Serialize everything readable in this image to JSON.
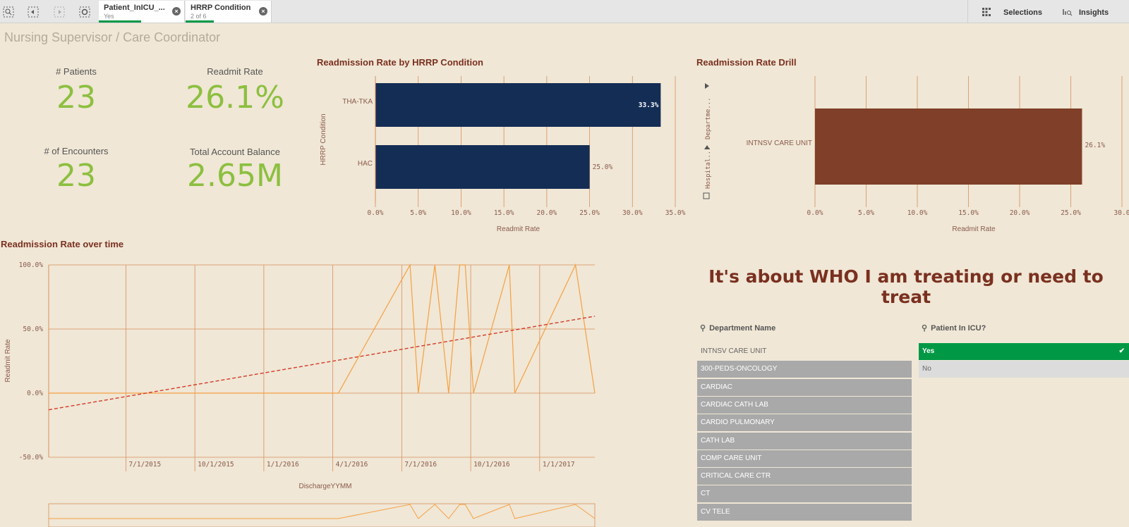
{
  "toolbar": {
    "chips": [
      {
        "title": "Patient_InICU_...",
        "subtitle": "Yes"
      },
      {
        "title": "HRRP Condition",
        "subtitle": "2 of 6"
      }
    ],
    "selections_label": "Selections",
    "insights_label": "Insights"
  },
  "sheet": {
    "title": "Nursing Supervisor / Care Coordinator"
  },
  "kpis": {
    "patients": {
      "label": "# Patients",
      "value": "23"
    },
    "readmit": {
      "label": "Readmit Rate",
      "value": "26.1%"
    },
    "encounters": {
      "label": "# of Encounters",
      "value": "23"
    },
    "balance": {
      "label": "Total Account Balance",
      "value": "2.65M"
    }
  },
  "colors": {
    "accent": "#7a3020",
    "kpi_green": "#8cbf3f",
    "bar_navy": "#142d55",
    "bar_brown": "#7f3f28",
    "line_orange": "#f5a040",
    "trend_red": "#d43a2a",
    "selected_green": "#009845"
  },
  "chart_data": [
    {
      "type": "bar",
      "orientation": "horizontal",
      "title": "Readmission Rate by HRRP Condition",
      "xlabel": "Readmit Rate",
      "ylabel": "HRRP Condition",
      "categories": [
        "THA-TKA",
        "HAC"
      ],
      "values": [
        33.3,
        25.0
      ],
      "data_labels": [
        "33.3%",
        "25.0%"
      ],
      "xlim": [
        0,
        35
      ],
      "x_ticks": [
        "0.0%",
        "5.0%",
        "10.0%",
        "15.0%",
        "20.0%",
        "25.0%",
        "30.0%",
        "35.0%"
      ],
      "grid": true
    },
    {
      "type": "bar",
      "orientation": "horizontal",
      "title": "Readmission Rate Drill",
      "xlabel": "Readmit Rate",
      "categories": [
        "INTNSV CARE UNIT"
      ],
      "values": [
        26.1
      ],
      "data_labels": [
        "26.1%"
      ],
      "xlim": [
        0,
        30
      ],
      "x_ticks": [
        "0.0%",
        "5.0%",
        "10.0%",
        "15.0%",
        "20.0%",
        "25.0%",
        "30.0"
      ],
      "drill_path": [
        "Departme...",
        "Hospital..."
      ],
      "grid": true
    },
    {
      "type": "line",
      "title": "Readmission Rate over time",
      "xlabel": "DischargeYYMM",
      "ylabel": "Readmit Rate",
      "ylim": [
        -50,
        100
      ],
      "y_ticks": [
        "100.0%",
        "50.0%",
        "0.0%",
        "-50.0%"
      ],
      "x_ticks": [
        "7/1/2015",
        "10/1/2015",
        "1/1/2016",
        "4/1/2016",
        "7/1/2016",
        "10/1/2016",
        "1/1/2017"
      ],
      "x_tick_values": [
        2015.5,
        2015.75,
        2016.0,
        2016.25,
        2016.5,
        2016.75,
        2017.0
      ],
      "xlim": [
        2015.22,
        2017.2
      ],
      "series": [
        {
          "values_xy": [
            [
              2015.22,
              0
            ],
            [
              2016.27,
              0
            ],
            [
              2016.53,
              100
            ],
            [
              2016.56,
              0
            ],
            [
              2016.62,
              100
            ],
            [
              2016.67,
              0
            ],
            [
              2016.71,
              100
            ],
            [
              2016.73,
              100
            ],
            [
              2016.76,
              0
            ],
            [
              2016.89,
              100
            ],
            [
              2016.91,
              0
            ],
            [
              2017.13,
              100
            ],
            [
              2017.2,
              0
            ]
          ]
        }
      ],
      "trendline": {
        "from": [
          2015.22,
          -13
        ],
        "to": [
          2017.2,
          60
        ]
      },
      "grid": true
    }
  ],
  "heading": "It's about WHO I am treating or need to treat",
  "dept_filter": {
    "title": "Department Name",
    "items": [
      {
        "label": "INTNSV CARE UNIT",
        "state": "plain"
      },
      {
        "label": "300-PEDS-ONCOLOGY",
        "state": "excluded"
      },
      {
        "label": "CARDIAC",
        "state": "excluded"
      },
      {
        "label": "CARDIAC CATH LAB",
        "state": "excluded"
      },
      {
        "label": "CARDIO PULMONARY",
        "state": "excluded"
      },
      {
        "label": "CATH LAB",
        "state": "excluded"
      },
      {
        "label": "COMP CARE UNIT",
        "state": "excluded"
      },
      {
        "label": "CRITICAL CARE CTR",
        "state": "excluded"
      },
      {
        "label": "CT",
        "state": "excluded"
      },
      {
        "label": "CV TELE",
        "state": "excluded"
      }
    ]
  },
  "icu_filter": {
    "title": "Patient In ICU?",
    "items": [
      {
        "label": "Yes",
        "state": "selected"
      },
      {
        "label": "No",
        "state": "alternative"
      }
    ]
  }
}
